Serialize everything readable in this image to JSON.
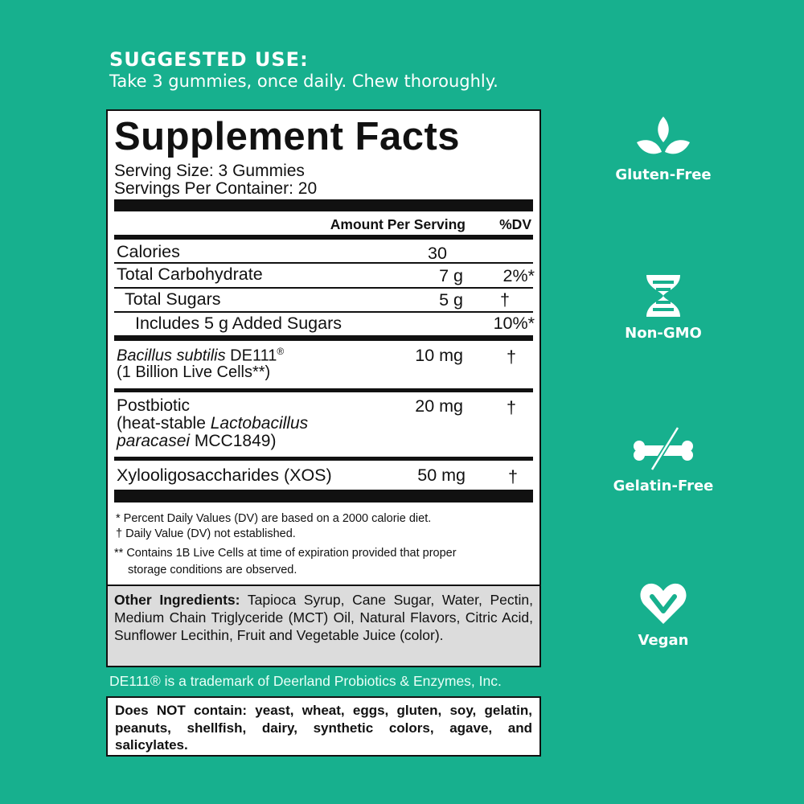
{
  "suggested_use": {
    "title": "SUGGESTED USE:",
    "text": "Take 3 gummies, once daily. Chew thoroughly."
  },
  "facts": {
    "title": "Supplement Facts",
    "serving_size": "Serving Size: 3 Gummies",
    "servings_per_container": "Servings Per Container: 20",
    "header_amount": "Amount Per Serving",
    "header_dv": "%DV",
    "rows": [
      {
        "name": "Calories",
        "amount": "30",
        "dv": ""
      },
      {
        "name": "Total Carbohydrate",
        "amount": "7 g",
        "dv": "2%*"
      },
      {
        "name": "Total Sugars",
        "amount": "5 g",
        "dv": "†"
      },
      {
        "name": "Includes 5 g Added Sugars",
        "amount": "",
        "dv": "10%*"
      },
      {
        "name_italic": "Bacillus subtilis",
        "name_rest": " DE111",
        "reg": "®",
        "line2": "(1 Billion Live Cells**)",
        "amount": "10 mg",
        "dv": "†"
      },
      {
        "name": "Postbiotic",
        "line2_pre": "(heat-stable ",
        "line2_italic": "Lactobacillus",
        "line3_italic": "paracasei",
        "line3_rest": " MCC1849)",
        "amount": "20 mg",
        "dv": "†"
      },
      {
        "name": "Xylooligosaccharides (XOS)",
        "amount": "50 mg",
        "dv": "†"
      }
    ],
    "footnotes": [
      "* Percent Daily Values (DV) are based on a 2000 calorie diet.",
      "† Daily Value (DV) not established.",
      "** Contains 1B Live Cells at time of expiration provided that proper",
      "storage conditions are observed."
    ],
    "other_label": "Other Ingredients:",
    "other_text": " Tapioca Syrup, Cane Sugar, Water, Pectin, Medium Chain Triglyceride (MCT) Oil, Natural Flavors, Citric Acid, Sunflower Lecithin, Fruit and Vegetable Juice (color)."
  },
  "trademark": "DE111® is a trademark of Deerland Probiotics & Enzymes, Inc.",
  "does_not_contain": "Does NOT contain: yeast, wheat, eggs, gluten, soy, gelatin, peanuts, shellfish, dairy, synthetic colors, agave, and salicylates.",
  "badges": [
    {
      "icon": "leaf-sprout-icon",
      "label": "Gluten-Free"
    },
    {
      "icon": "dna-icon",
      "label": "Non-GMO"
    },
    {
      "icon": "crossed-bone-icon",
      "label": "Gelatin-Free"
    },
    {
      "icon": "heart-check-icon",
      "label": "Vegan"
    }
  ],
  "colors": {
    "background": "#17b08e",
    "ingredients_bg": "#dcdcdc"
  }
}
